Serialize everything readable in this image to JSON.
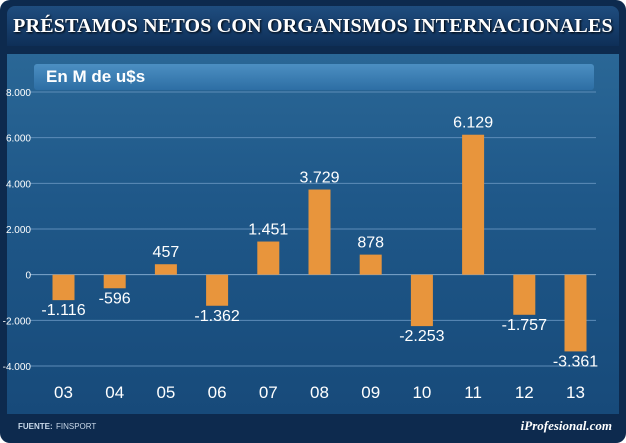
{
  "header": {
    "title": "PRÉSTAMOS NETOS CON ORGANISMOS INTERNACIONALES"
  },
  "chart_data": {
    "type": "bar",
    "subtitle": "En M de u$s",
    "categories": [
      "03",
      "04",
      "05",
      "06",
      "07",
      "08",
      "09",
      "10",
      "11",
      "12",
      "13"
    ],
    "values": [
      -1116,
      -596,
      457,
      -1362,
      1451,
      3729,
      878,
      -2253,
      6129,
      -1757,
      -3361
    ],
    "value_labels": [
      "-1.116",
      "-596",
      "457",
      "-1.362",
      "1.451",
      "3.729",
      "878",
      "-2.253",
      "6.129",
      "-1.757",
      "-3.361"
    ],
    "yticks": [
      8000,
      6000,
      4000,
      2000,
      0,
      -2000,
      -4000
    ],
    "ytick_labels": [
      "8.000",
      "6.000",
      "4.000",
      "2.000",
      "0",
      "-2.000",
      "-4.000"
    ],
    "ylim": [
      -4000,
      8000
    ],
    "grid": true,
    "colors": {
      "bar": "#e8953c",
      "grid": "#5d8cb8",
      "zero": "#7ea6cc"
    }
  },
  "footer": {
    "source_label": "FUENTE:",
    "source_value": "FINSPORT",
    "brand": "iProfesional.com"
  }
}
